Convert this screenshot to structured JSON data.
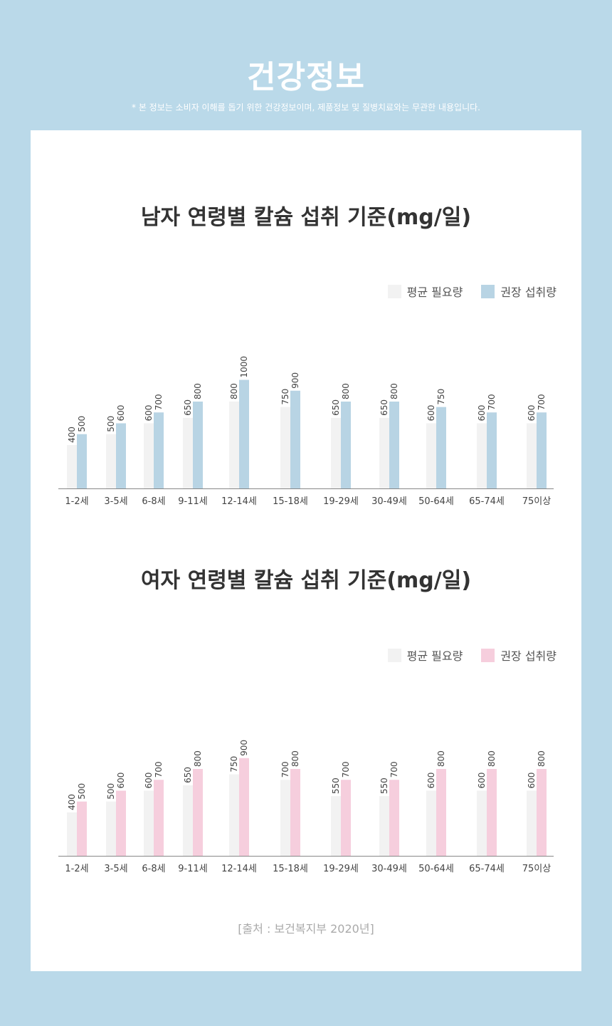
{
  "header": {
    "title": "건강정보",
    "subtitle": "* 본 정보는 소비자 이해를 돕기 위한 건강정보이며, 제품정보 및 질병치료와는 무관한 내용입니다."
  },
  "colors": {
    "background": "#bad9e9",
    "card": "#ffffff",
    "avg_bar": "#f2f2f2",
    "male_recommended": "#b8d4e4",
    "female_recommended": "#f6cedd",
    "axis": "#888888",
    "text": "#333333"
  },
  "chart_data": [
    {
      "type": "bar",
      "title": "남자 연령별 칼슘 섭취 기준(mg/일)",
      "categories": [
        "1-2세",
        "3-5세",
        "6-8세",
        "9-11세",
        "12-14세",
        "15-18세",
        "19-29세",
        "30-49세",
        "50-64세",
        "65-74세",
        "75이상"
      ],
      "series": [
        {
          "name": "평균 필요량",
          "color": "#f2f2f2",
          "values": [
            400,
            500,
            600,
            650,
            800,
            750,
            650,
            650,
            600,
            600,
            600
          ]
        },
        {
          "name": "권장 섭취량",
          "color": "#b8d4e4",
          "values": [
            500,
            600,
            700,
            800,
            1000,
            900,
            800,
            800,
            750,
            700,
            700
          ]
        }
      ],
      "legend": "top-right",
      "grid": false,
      "data_labels": "rotated-above"
    },
    {
      "type": "bar",
      "title": "여자 연령별 칼슘 섭취 기준(mg/일)",
      "categories": [
        "1-2세",
        "3-5세",
        "6-8세",
        "9-11세",
        "12-14세",
        "15-18세",
        "19-29세",
        "30-49세",
        "50-64세",
        "65-74세",
        "75이상"
      ],
      "series": [
        {
          "name": "평균 필요량",
          "color": "#f2f2f2",
          "values": [
            400,
            500,
            600,
            650,
            750,
            700,
            550,
            550,
            600,
            600,
            600
          ]
        },
        {
          "name": "권장 섭취량",
          "color": "#f6cedd",
          "values": [
            500,
            600,
            700,
            800,
            900,
            800,
            700,
            700,
            800,
            800,
            800
          ]
        }
      ],
      "legend": "top-right",
      "grid": false,
      "data_labels": "rotated-above"
    }
  ],
  "source": "[출처 : 보건복지부 2020년]"
}
